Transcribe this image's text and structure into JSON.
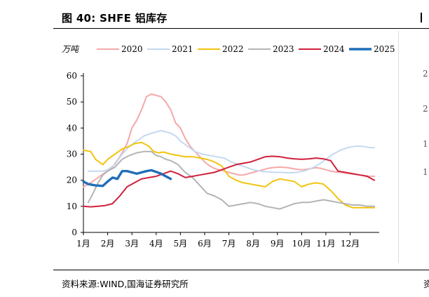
{
  "figure": {
    "title": "图 40:  SHFE 铝库存",
    "source": "资料来源:WIND,国海证券研究所"
  },
  "chart_data": {
    "type": "line",
    "unit_label": "万吨",
    "ylim": [
      0,
      60
    ],
    "yticks": [
      0,
      10,
      20,
      30,
      40,
      50,
      60
    ],
    "xlim": [
      1,
      13.2
    ],
    "month_ticks": [
      {
        "x": 1,
        "label": "1月"
      },
      {
        "x": 2,
        "label": "2月"
      },
      {
        "x": 3,
        "label": "3月"
      },
      {
        "x": 4,
        "label": "4月"
      },
      {
        "x": 5,
        "label": "5月"
      },
      {
        "x": 6,
        "label": "6月"
      },
      {
        "x": 7,
        "label": "7月"
      },
      {
        "x": 8,
        "label": "8月"
      },
      {
        "x": 9,
        "label": "9月"
      },
      {
        "x": 10,
        "label": "10月"
      },
      {
        "x": 11,
        "label": "11月"
      },
      {
        "x": 12,
        "label": "12月"
      }
    ],
    "legend_position": "top",
    "grid": false,
    "series": [
      {
        "name": "2020",
        "color": "#f4a9a8",
        "width": 2,
        "x": [
          1.0,
          1.3,
          1.6,
          1.9,
          2.2,
          2.5,
          2.8,
          3.0,
          3.2,
          3.4,
          3.6,
          3.8,
          4.0,
          4.2,
          4.4,
          4.6,
          4.8,
          5.0,
          5.2,
          5.4,
          5.6,
          5.8,
          6.0,
          6.2,
          6.4,
          6.6,
          6.8,
          7.0,
          7.2,
          7.4,
          7.6,
          7.8,
          8.0,
          8.2,
          8.4,
          8.6,
          8.8,
          9.0,
          9.2,
          9.4,
          9.6,
          9.8,
          10.0,
          10.2,
          10.4,
          10.6,
          10.8,
          11.0,
          11.2,
          11.4,
          11.6,
          11.8,
          12.0,
          12.2,
          12.4,
          12.6,
          12.8,
          13.0
        ],
        "y": [
          17.5,
          19,
          21,
          23,
          25,
          29,
          34,
          40,
          43,
          47,
          52,
          53,
          52.5,
          52,
          50,
          47,
          42,
          40,
          36,
          33,
          31,
          29,
          27,
          25.5,
          24.5,
          24,
          23.5,
          23,
          22.5,
          22,
          22,
          22.5,
          23,
          23.5,
          24,
          24.5,
          24.8,
          25,
          25,
          24.8,
          24.5,
          24.2,
          24,
          24.2,
          24.5,
          24.8,
          24.5,
          24,
          23.5,
          23.2,
          23,
          22.8,
          22.5,
          22.3,
          22,
          21.8,
          21.5,
          21.5
        ]
      },
      {
        "name": "2021",
        "color": "#c5d9f1",
        "width": 2,
        "x": [
          1.2,
          1.5,
          1.8,
          2.0,
          2.3,
          2.6,
          2.9,
          3.2,
          3.5,
          3.8,
          4.0,
          4.2,
          4.4,
          4.6,
          4.8,
          5.0,
          5.3,
          5.6,
          5.9,
          6.2,
          6.5,
          6.8,
          7.1,
          7.4,
          7.7,
          8.0,
          8.3,
          8.6,
          8.9,
          9.2,
          9.5,
          9.8,
          10.1,
          10.4,
          10.7,
          11.0,
          11.3,
          11.6,
          11.9,
          12.2,
          12.5,
          12.8,
          13.0
        ],
        "y": [
          23.5,
          23.5,
          23.5,
          24,
          26,
          30,
          33,
          35,
          37,
          38,
          38.5,
          39,
          38.5,
          38,
          37,
          35,
          33,
          31,
          30,
          29.5,
          29,
          28.5,
          27,
          26,
          25,
          24,
          23.5,
          23.2,
          23,
          23,
          22.8,
          23,
          23.5,
          24.5,
          26,
          28,
          30,
          31.5,
          32.5,
          33,
          33,
          32.5,
          32.5
        ]
      },
      {
        "name": "2022",
        "color": "#f2c40f",
        "width": 2,
        "x": [
          1.0,
          1.3,
          1.5,
          1.8,
          2.0,
          2.3,
          2.6,
          2.9,
          3.1,
          3.4,
          3.7,
          3.9,
          4.1,
          4.3,
          4.6,
          4.9,
          5.2,
          5.5,
          5.8,
          6.1,
          6.4,
          6.7,
          7.0,
          7.3,
          7.6,
          7.9,
          8.2,
          8.5,
          8.8,
          9.1,
          9.4,
          9.7,
          10.0,
          10.3,
          10.6,
          10.9,
          11.2,
          11.5,
          11.8,
          12.1,
          12.4,
          12.7,
          13.0
        ],
        "y": [
          31.5,
          31,
          28,
          26,
          28,
          30,
          32,
          33,
          34,
          34.5,
          33,
          31,
          30.5,
          30.8,
          30,
          29.5,
          29,
          29,
          28.5,
          28,
          27,
          25.5,
          21.5,
          20,
          19,
          18.5,
          18,
          17.5,
          19.5,
          20.5,
          20,
          19.5,
          17.5,
          18.5,
          19,
          18.5,
          16,
          13,
          10.5,
          9.5,
          9.5,
          9.5,
          9.5
        ]
      },
      {
        "name": "2023",
        "color": "#b4b4b4",
        "width": 2,
        "x": [
          1.2,
          1.4,
          1.6,
          1.8,
          2.0,
          2.3,
          2.6,
          2.9,
          3.2,
          3.5,
          3.8,
          4.0,
          4.2,
          4.4,
          4.6,
          4.9,
          5.2,
          5.5,
          5.8,
          6.1,
          6.4,
          6.7,
          7.0,
          7.3,
          7.6,
          7.9,
          8.2,
          8.5,
          8.8,
          9.1,
          9.4,
          9.7,
          10.0,
          10.3,
          10.6,
          10.9,
          11.2,
          11.5,
          11.8,
          12.1,
          12.4,
          12.7,
          13.0
        ],
        "y": [
          11.5,
          15,
          19,
          22,
          23.5,
          25,
          28,
          29.5,
          30.5,
          31,
          31,
          29.5,
          29,
          28,
          27.5,
          26,
          23,
          21,
          18,
          15,
          14,
          12.5,
          10,
          10.5,
          11,
          11.5,
          11,
          10,
          9.5,
          9,
          10,
          11,
          11.5,
          11.5,
          12,
          12.5,
          12,
          11.5,
          11,
          10.5,
          10.5,
          10,
          10
        ]
      },
      {
        "name": "2024",
        "color": "#d0203c",
        "width": 2,
        "x": [
          1.0,
          1.3,
          1.6,
          1.9,
          2.2,
          2.5,
          2.8,
          3.1,
          3.4,
          3.7,
          4.0,
          4.3,
          4.6,
          4.9,
          5.2,
          5.5,
          5.8,
          6.1,
          6.4,
          6.7,
          7.0,
          7.3,
          7.6,
          7.9,
          8.2,
          8.5,
          8.8,
          9.1,
          9.4,
          9.7,
          10.0,
          10.3,
          10.6,
          10.9,
          11.2,
          11.5,
          11.8,
          12.1,
          12.4,
          12.7,
          13.0
        ],
        "y": [
          10,
          9.8,
          10,
          10.3,
          11,
          14,
          17.5,
          19,
          20.5,
          21,
          21.5,
          22.5,
          23.5,
          22.5,
          21,
          21.5,
          22,
          22.5,
          23,
          24,
          25,
          26,
          26.5,
          27,
          28,
          29,
          29.2,
          29,
          28.5,
          28.2,
          28,
          28.2,
          28.5,
          28.2,
          27.5,
          23.5,
          23,
          22.5,
          22,
          21.5,
          20
        ]
      },
      {
        "name": "2025",
        "color": "#1f6fb8",
        "width": 3.4,
        "x": [
          1.0,
          1.2,
          1.5,
          1.8,
          2.0,
          2.2,
          2.4,
          2.6,
          2.8,
          3.0,
          3.2,
          3.4,
          3.6,
          3.8,
          4.0,
          4.2,
          4.4,
          4.6
        ],
        "y": [
          19.5,
          18.5,
          18,
          17.8,
          19.5,
          21,
          20.5,
          23.5,
          23.5,
          23,
          22.5,
          23,
          23.5,
          23.8,
          23.2,
          22.5,
          21.5,
          20.5
        ]
      }
    ]
  },
  "right_panel": {
    "clipped_marks": [
      "2",
      "2",
      "1",
      "1"
    ],
    "clipped_footer": "资"
  }
}
